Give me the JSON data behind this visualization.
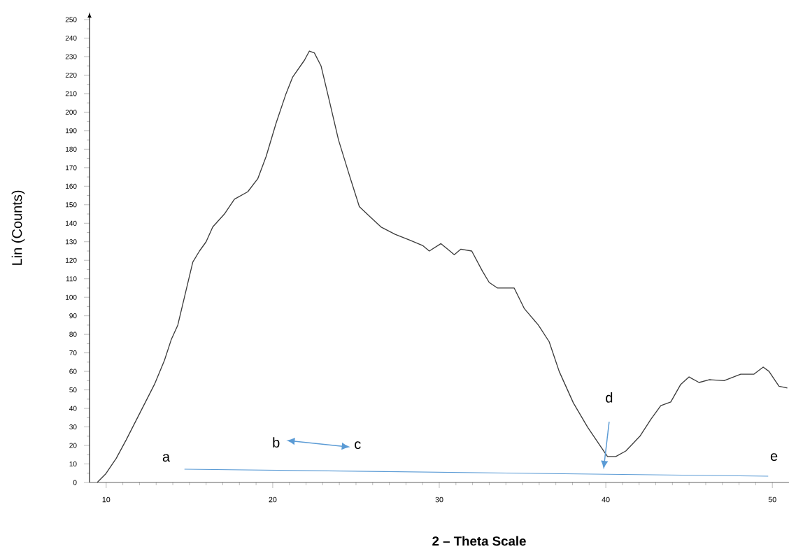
{
  "chart_data": {
    "type": "line",
    "xlabel": "**2 – Theta Scale**",
    "ylabel": "Lin (Counts)",
    "xlim": [
      9,
      51
    ],
    "ylim": [
      0,
      250
    ],
    "xticks": [
      10,
      20,
      30,
      40,
      50
    ],
    "yticks": [
      0,
      10,
      20,
      30,
      40,
      50,
      60,
      70,
      80,
      90,
      100,
      110,
      120,
      130,
      140,
      150,
      160,
      170,
      180,
      190,
      200,
      210,
      220,
      230,
      240,
      250
    ],
    "series": [
      {
        "color": "#3c3c3c",
        "x": [
          9.46,
          9.96,
          10.6,
          11.2,
          12.05,
          12.9,
          13.5,
          13.9,
          14.3,
          14.75,
          15.2,
          15.6,
          16.0,
          16.4,
          17.1,
          17.7,
          18.5,
          19.1,
          19.6,
          20.2,
          20.8,
          21.2,
          21.9,
          22.2,
          22.5,
          22.9,
          23.35,
          23.95,
          24.6,
          25.2,
          25.9,
          26.5,
          27.35,
          28.2,
          29.0,
          29.4,
          30.1,
          30.5,
          30.9,
          31.3,
          31.95,
          32.6,
          33.0,
          33.5,
          34.5,
          35.1,
          35.95,
          36.6,
          37.2,
          38.05,
          38.9,
          39.65,
          40.1,
          40.6,
          41.2,
          42.05,
          42.7,
          43.3,
          43.9,
          44.5,
          45.0,
          45.6,
          46.2,
          47.1,
          48.1,
          48.9,
          49.45,
          49.8,
          50.4,
          50.9
        ],
        "values": [
          0,
          4.5,
          13,
          23,
          38,
          53,
          66,
          77,
          85,
          102,
          119,
          125,
          130,
          138,
          145,
          153,
          157,
          164,
          176,
          194,
          210,
          219,
          228,
          233,
          232,
          225,
          208,
          185,
          166,
          149,
          143,
          138,
          134,
          131,
          128,
          125,
          129,
          126,
          123,
          126,
          125,
          114,
          108,
          105,
          105,
          94,
          85,
          76,
          60,
          43,
          30,
          20,
          14,
          14,
          17,
          25,
          34,
          41.5,
          43.5,
          53,
          57,
          54,
          55.5,
          55,
          58.5,
          58.5,
          62.3,
          60,
          52,
          51
        ]
      },
      {
        "type": "line",
        "color": "#5b9bd5",
        "x": [
          14.7,
          49.75
        ],
        "values": [
          7.2,
          3.4
        ]
      }
    ],
    "annotations": [
      "a",
      "b",
      "c",
      "d",
      "e"
    ]
  }
}
